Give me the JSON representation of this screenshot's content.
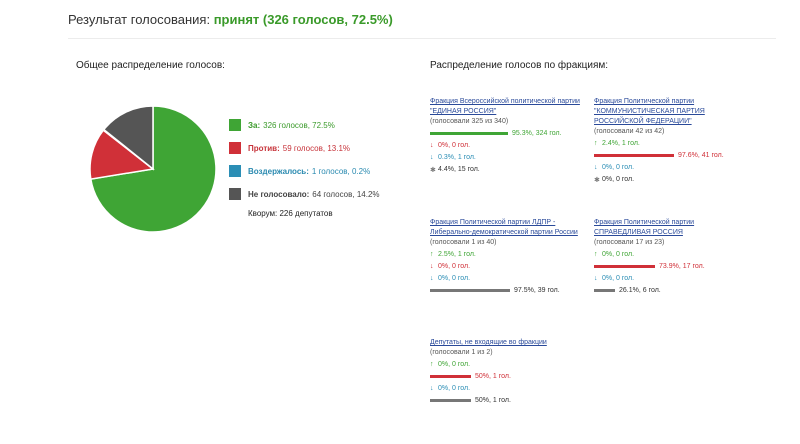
{
  "header": {
    "prefix": "Результат голосования:",
    "result": "принят (326 голосов, 72.5%)"
  },
  "overall": {
    "title": "Общее распределение голосов:",
    "chart_data": {
      "type": "pie",
      "labels": [
        "За",
        "Против",
        "Воздержалось",
        "Не голосовало"
      ],
      "values": [
        326,
        59,
        1,
        64
      ],
      "colors": [
        "#3fa535",
        "#d03038",
        "#2b8eb5",
        "#555555"
      ]
    },
    "legend": [
      {
        "label": "За:",
        "value": "326 голосов, 72.5%",
        "color": "#3fa535"
      },
      {
        "label": "Против:",
        "value": "59 голосов, 13.1%",
        "color": "#d03038"
      },
      {
        "label": "Воздержалось:",
        "value": "1 голосов, 0.2%",
        "color": "#2b8eb5"
      },
      {
        "label": "Не голосовало:",
        "value": "64 голосов, 14.2%",
        "color": "#555555"
      }
    ],
    "quorum": "Кворум: 226 депутатов"
  },
  "factions_title": "Распределение голосов по фракциям:",
  "factions": [
    {
      "name": "Фракция Всероссийской политической партии \"ЕДИНАЯ РОССИЯ\"",
      "sub": "(голосовали 325 из 340)",
      "rows": [
        {
          "type": "za",
          "text": "95.3%, 324 гол.",
          "share": 0.953
        },
        {
          "type": "against",
          "text": "0%, 0 гол.",
          "share": 0
        },
        {
          "type": "abstain",
          "text": "0.3%, 1 гол.",
          "share": 0.003
        },
        {
          "type": "novote",
          "text": "4.4%, 15 гол.",
          "share": 0.044
        }
      ]
    },
    {
      "name": "Фракция Политической партии \"КОММУНИСТИЧЕСКАЯ ПАРТИЯ РОССИЙСКОЙ ФЕДЕРАЦИИ\"",
      "sub": "(голосовали 42 из 42)",
      "rows": [
        {
          "type": "za",
          "text": "2.4%, 1 гол.",
          "share": 0.024
        },
        {
          "type": "against",
          "text": "97.6%, 41 гол.",
          "share": 0.976
        },
        {
          "type": "abstain",
          "text": "0%, 0 гол.",
          "share": 0
        },
        {
          "type": "novote",
          "text": "0%, 0 гол.",
          "share": 0
        }
      ]
    },
    {
      "name": "Фракция Политической партии ЛДПР - Либерально-демократической партии России",
      "sub": "(голосовали 1 из 40)",
      "rows": [
        {
          "type": "za",
          "text": "2.5%, 1 гол.",
          "share": 0.025
        },
        {
          "type": "against",
          "text": "0%, 0 гол.",
          "share": 0
        },
        {
          "type": "abstain",
          "text": "0%, 0 гол.",
          "share": 0
        },
        {
          "type": "novote",
          "text": "97.5%, 39 гол.",
          "share": 0.975
        }
      ]
    },
    {
      "name": "Фракция Политической партии СПРАВЕДЛИВАЯ РОССИЯ",
      "sub": "(голосовали 17 из 23)",
      "rows": [
        {
          "type": "za",
          "text": "0%, 0 гол.",
          "share": 0
        },
        {
          "type": "against",
          "text": "73.9%, 17 гол.",
          "share": 0.739
        },
        {
          "type": "abstain",
          "text": "0%, 0 гол.",
          "share": 0
        },
        {
          "type": "novote",
          "text": "26.1%, 6 гол.",
          "share": 0.261
        }
      ]
    },
    {
      "name": "Депутаты, не входящие во фракции",
      "sub": "(голосовали 1 из 2)",
      "rows": [
        {
          "type": "za",
          "text": "0%, 0 гол.",
          "share": 0
        },
        {
          "type": "against",
          "text": "50%, 1 гол.",
          "share": 0.5
        },
        {
          "type": "abstain",
          "text": "0%, 0 гол.",
          "share": 0
        },
        {
          "type": "novote",
          "text": "50%, 1 гол.",
          "share": 0.5
        }
      ]
    }
  ],
  "row_styles": {
    "za": {
      "color": "#3fa535",
      "arrow": "↑"
    },
    "against": {
      "color": "#d03038",
      "arrow": "↓"
    },
    "abstain": {
      "color": "#2b8eb5",
      "arrow": "↓"
    },
    "novote": {
      "color": "#777777",
      "arrow": "✱"
    }
  }
}
